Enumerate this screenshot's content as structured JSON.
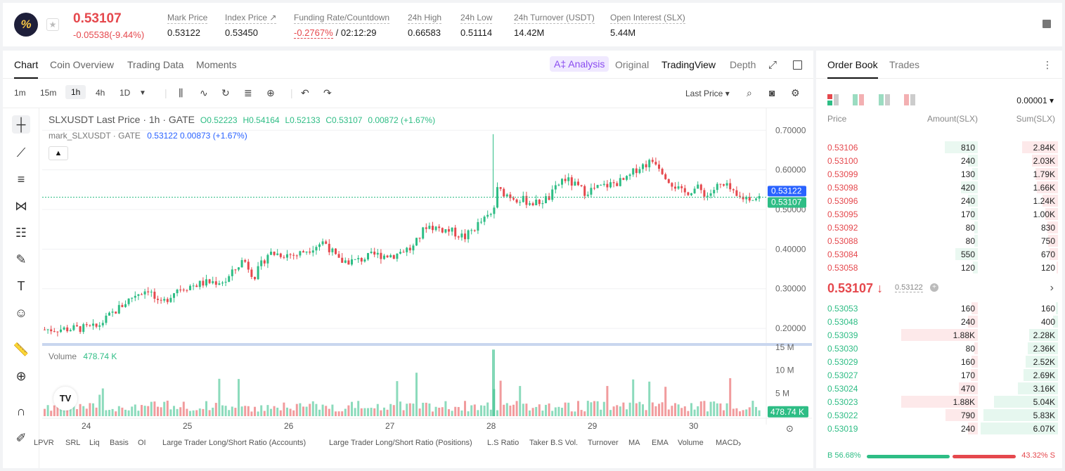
{
  "ticker": {
    "logo_glyph": "%",
    "last_price": "0.53107",
    "change": "-0.05538(-9.44%)",
    "stats": [
      {
        "label": "Mark Price",
        "value": "0.53122"
      },
      {
        "label": "Index Price ↗",
        "value": "0.53450"
      },
      {
        "label": "Funding Rate/Countdown",
        "value": "-0.2767%",
        "value2": "/ 02:12:29"
      },
      {
        "label": "24h High",
        "value": "0.66583"
      },
      {
        "label": "24h Low",
        "value": "0.51114"
      },
      {
        "label": "24h Turnover (USDT)",
        "value": "14.42M"
      },
      {
        "label": "Open Interest (SLX)",
        "value": "5.44M"
      }
    ]
  },
  "chart_tabs": [
    "Chart",
    "Coin Overview",
    "Trading Data",
    "Moments"
  ],
  "view_tabs": {
    "ai": "A‡ Analysis",
    "original": "Original",
    "tradingview": "TradingView",
    "depth": "Depth"
  },
  "intervals": [
    "1m",
    "15m",
    "1h",
    "4h",
    "1D"
  ],
  "price_type": "Last Price",
  "legend": {
    "title": "SLXUSDT Last Price · 1h · GATE",
    "o": "O0.52223",
    "h": "H0.54164",
    "l": "L0.52133",
    "c": "C0.53107",
    "chg": "0.00872 (+1.67%)",
    "mark_name": "mark_SLXUSDT · GATE",
    "mark_val": "0.53122 0.00873 (+1.67%)"
  },
  "volume_label": "Volume",
  "volume_value": "478.74 K",
  "chart_data": {
    "type": "candlestick",
    "x_ticks": [
      "24",
      "25",
      "26",
      "27",
      "28",
      "29",
      "30"
    ],
    "y_ticks": [
      "0.70000",
      "0.60000",
      "0.50000",
      "0.40000",
      "0.30000",
      "0.20000"
    ],
    "ylim": [
      0.17,
      0.72
    ],
    "vol_ticks": [
      "15 M",
      "10 M",
      "5 M"
    ],
    "vol_max": 15,
    "mark_price_label": "0.53122",
    "last_price_label": "0.53107",
    "volume_badge": "478.74 K"
  },
  "indicators": [
    "LPVR",
    "SRL",
    "Liq",
    "Basis",
    "OI",
    "Large Trader Long/Short Ratio (Accounts)",
    "Large Trader Long/Short Ratio (Positions)",
    "L.S Ratio",
    "Taker B.S Vol.",
    "Turnover",
    "MA",
    "EMA",
    "Volume",
    "MACD"
  ],
  "orderbook": {
    "tabs": [
      "Order Book",
      "Trades"
    ],
    "precision": "0.00001",
    "headers": [
      "Price",
      "Amount(SLX)",
      "Sum(SLX)"
    ],
    "asks": [
      {
        "price": "0.53106",
        "amount": "810",
        "sum": "2.84K"
      },
      {
        "price": "0.53100",
        "amount": "240",
        "sum": "2.03K"
      },
      {
        "price": "0.53099",
        "amount": "130",
        "sum": "1.79K"
      },
      {
        "price": "0.53098",
        "amount": "420",
        "sum": "1.66K"
      },
      {
        "price": "0.53096",
        "amount": "240",
        "sum": "1.24K"
      },
      {
        "price": "0.53095",
        "amount": "170",
        "sum": "1.00K"
      },
      {
        "price": "0.53092",
        "amount": "80",
        "sum": "830"
      },
      {
        "price": "0.53088",
        "amount": "80",
        "sum": "750"
      },
      {
        "price": "0.53084",
        "amount": "550",
        "sum": "670"
      },
      {
        "price": "0.53058",
        "amount": "120",
        "sum": "120"
      }
    ],
    "mid_price": "0.53107 ↓",
    "mid_mark": "0.53122",
    "bids": [
      {
        "price": "0.53053",
        "amount": "160",
        "sum": "160"
      },
      {
        "price": "0.53048",
        "amount": "240",
        "sum": "400"
      },
      {
        "price": "0.53039",
        "amount": "1.88K",
        "sum": "2.28K"
      },
      {
        "price": "0.53030",
        "amount": "80",
        "sum": "2.36K"
      },
      {
        "price": "0.53029",
        "amount": "160",
        "sum": "2.52K"
      },
      {
        "price": "0.53027",
        "amount": "170",
        "sum": "2.69K"
      },
      {
        "price": "0.53024",
        "amount": "470",
        "sum": "3.16K"
      },
      {
        "price": "0.53023",
        "amount": "1.88K",
        "sum": "5.04K"
      },
      {
        "price": "0.53022",
        "amount": "790",
        "sum": "5.83K"
      },
      {
        "price": "0.53019",
        "amount": "240",
        "sum": "6.07K"
      }
    ],
    "buy_pct": "B 56.68%",
    "sell_pct": "43.32% S",
    "buy_ratio": 0.5668
  },
  "colors": {
    "up": "#2ebd85",
    "down": "#e5484d"
  }
}
